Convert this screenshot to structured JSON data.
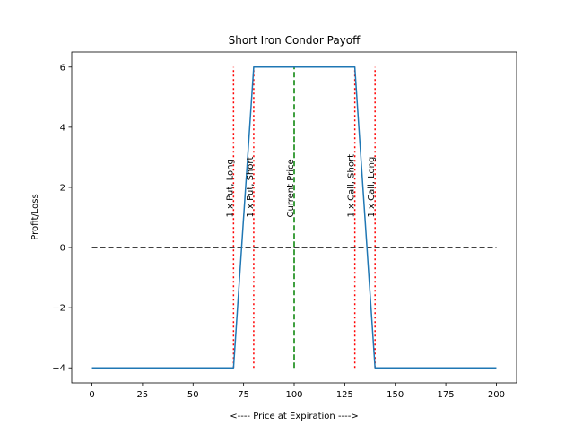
{
  "chart_data": {
    "type": "line",
    "title": "Short Iron Condor Payoff",
    "xlabel": "<---- Price at Expiration ---->",
    "ylabel": "Profit/Loss",
    "xlim": [
      -10,
      210
    ],
    "ylim": [
      -4.5,
      6.5
    ],
    "xticks": [
      0,
      25,
      50,
      75,
      100,
      125,
      150,
      175,
      200
    ],
    "yticks": [
      -4,
      -2,
      0,
      2,
      4,
      6
    ],
    "ytick_labels": [
      "−4",
      "−2",
      "0",
      "2",
      "4",
      "6"
    ],
    "grid": false,
    "series": [
      {
        "color": "#1f77b4",
        "style": "solid",
        "x": [
          0,
          70,
          80,
          130,
          140,
          200
        ],
        "y": [
          -4,
          -4,
          6,
          6,
          -4,
          -4
        ]
      }
    ],
    "reference_lines": [
      {
        "kind": "horizontal",
        "value": 0,
        "x_range": [
          0,
          200
        ],
        "color": "#000000",
        "style": "dashed"
      },
      {
        "kind": "vertical",
        "value": 70,
        "y_range": [
          -4,
          6
        ],
        "color": "#ff0000",
        "style": "dotted",
        "label": "1 x Put, Long"
      },
      {
        "kind": "vertical",
        "value": 80,
        "y_range": [
          -4,
          6
        ],
        "color": "#ff0000",
        "style": "dotted",
        "label": "1 x Put, Short"
      },
      {
        "kind": "vertical",
        "value": 100,
        "y_range": [
          -4,
          6
        ],
        "color": "#008000",
        "style": "dashed",
        "label": "Current Price"
      },
      {
        "kind": "vertical",
        "value": 130,
        "y_range": [
          -4,
          6
        ],
        "color": "#ff0000",
        "style": "dotted",
        "label": "1 x Call, Short"
      },
      {
        "kind": "vertical",
        "value": 140,
        "y_range": [
          -4,
          6
        ],
        "color": "#ff0000",
        "style": "dotted",
        "label": "1 x Call, Long"
      }
    ],
    "label_y": 1
  }
}
